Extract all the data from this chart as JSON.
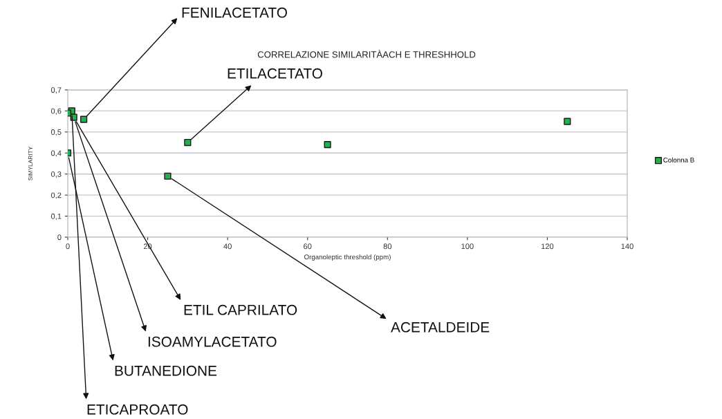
{
  "chart_data": {
    "type": "scatter",
    "title": "CORRELAZIONE SIMILARITÀACH E THRESHHOLD",
    "xlabel": "Organoleptic threshold (ppm)",
    "ylabel": "SIMYLARITY",
    "x": [
      0,
      1,
      1.5,
      4,
      0,
      30,
      25,
      65,
      125
    ],
    "series": [
      {
        "name": "Colonna B",
        "color": "#22b14c",
        "values": [
          0.59,
          0.6,
          0.57,
          0.56,
          0.4,
          0.45,
          0.29,
          0.44,
          0.55
        ]
      }
    ],
    "xlim": [
      0,
      140
    ],
    "xticks": [
      0,
      20,
      40,
      60,
      80,
      100,
      120,
      140
    ],
    "ylim": [
      0,
      0.7
    ],
    "yticks": [
      {
        "value": 0,
        "label": "0"
      },
      {
        "value": 0.1,
        "label": "0,1"
      },
      {
        "value": 0.2,
        "label": "0,2"
      },
      {
        "value": 0.3,
        "label": "0,3"
      },
      {
        "value": 0.4,
        "label": "0,4"
      },
      {
        "value": 0.5,
        "label": "0,5"
      },
      {
        "value": 0.6,
        "label": "0,6"
      },
      {
        "value": 0.7,
        "label": "0,7"
      }
    ],
    "grid": "y",
    "legend": "right",
    "marker": "square",
    "annotations": [
      {
        "text": "FENILACETATO",
        "x": 4,
        "y": 0.56
      },
      {
        "text": "ETILACETATO",
        "x": 30,
        "y": 0.45
      },
      {
        "text": "ACETALDEIDE",
        "x": 25,
        "y": 0.29
      },
      {
        "text": "ETIL CAPRILATO",
        "x": 1.5,
        "y": 0.57
      },
      {
        "text": "ISOAMYLACETATO",
        "x": 1.5,
        "y": 0.57
      },
      {
        "text": "BUTANEDIONE",
        "x": 0,
        "y": 0.4
      },
      {
        "text": "ETICAPROATO",
        "x": 1,
        "y": 0.6
      }
    ]
  }
}
